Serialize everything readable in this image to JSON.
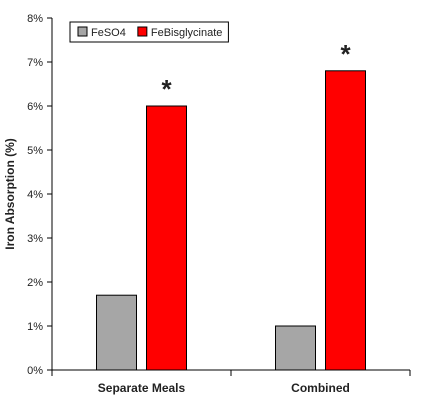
{
  "chart_data": {
    "type": "bar",
    "title": "",
    "xlabel": "",
    "ylabel": "Iron Absorption (%)",
    "categories": [
      "Separate Meals",
      "Combined"
    ],
    "series": [
      {
        "name": "FeSO4",
        "values": [
          1.7,
          1.0
        ],
        "color": "#a6a6a6"
      },
      {
        "name": "FeBisglycinate",
        "values": [
          6.0,
          6.8
        ],
        "color": "#ff0000"
      }
    ],
    "ylim": [
      0,
      8
    ],
    "yticks": [
      0,
      1,
      2,
      3,
      4,
      5,
      6,
      7,
      8
    ],
    "ytick_labels": [
      "0%",
      "1%",
      "2%",
      "3%",
      "4%",
      "5%",
      "6%",
      "7%",
      "8%"
    ],
    "annotations": [
      {
        "text": "*",
        "category": "Separate Meals",
        "series": "FeBisglycinate"
      },
      {
        "text": "*",
        "category": "Combined",
        "series": "FeBisglycinate"
      }
    ],
    "legend": {
      "position": "top-left",
      "boxed": true
    },
    "grid": false
  }
}
